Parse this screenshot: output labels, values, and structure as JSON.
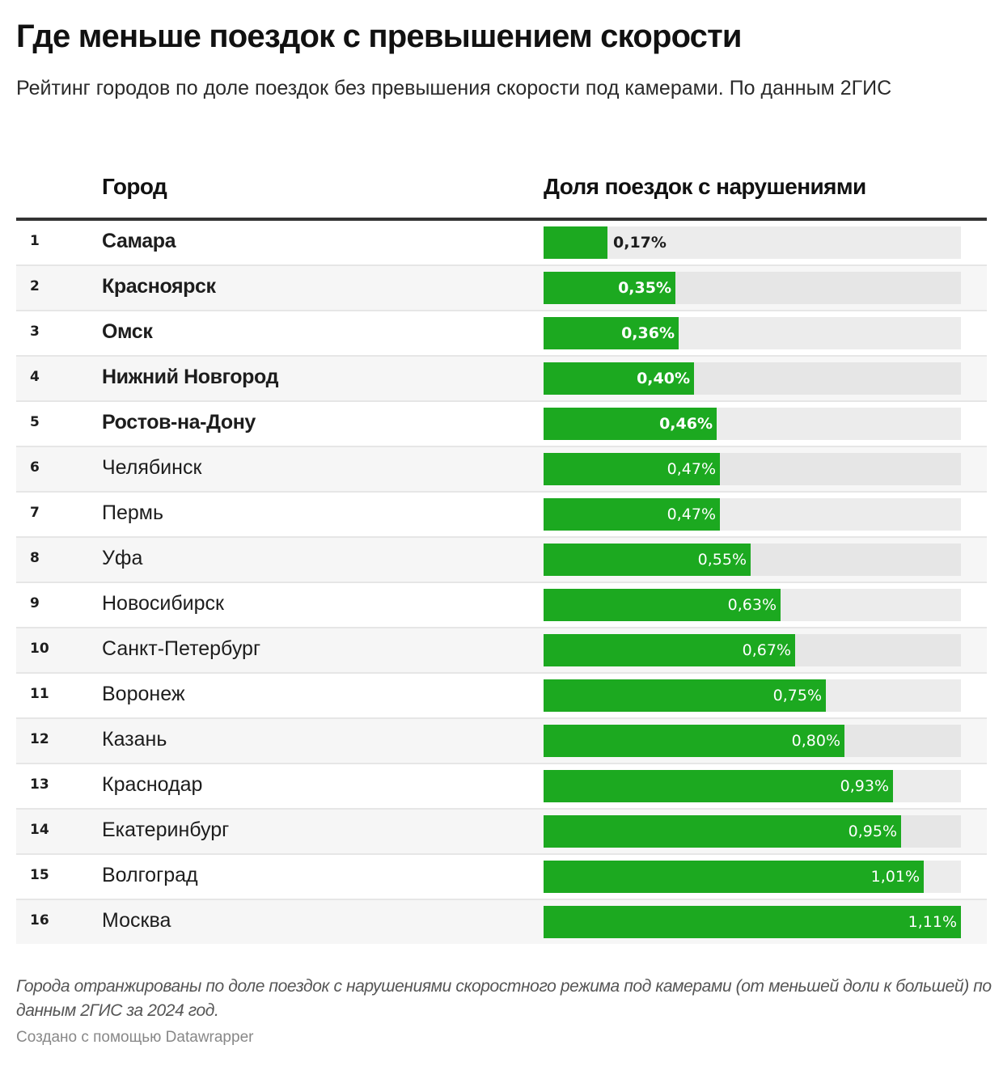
{
  "header": {
    "title": "Где меньше поездок с превышением скорости",
    "subtitle": "Рейтинг городов по доле поездок без превышения скорости под камерами. По данным 2ГИС"
  },
  "table": {
    "columns": {
      "rank": "",
      "city": "Город",
      "share": "Доля поездок с нарушениями"
    },
    "bar_color": "#1ca920",
    "track_color": "#ececec"
  },
  "chart_data": {
    "type": "bar",
    "orientation": "horizontal",
    "title": "Где меньше поездок с превышением скорости",
    "subtitle": "Рейтинг городов по доле поездок без превышения скорости под камерами. По данным 2ГИС",
    "xlabel": "Доля поездок с нарушениями",
    "ylabel": "Город",
    "xlim": [
      0,
      1.11
    ],
    "unit": "%",
    "rows": [
      {
        "rank": "1",
        "city": "Самара",
        "value": 0.17,
        "label": "0,17%",
        "bold": true
      },
      {
        "rank": "2",
        "city": "Красноярск",
        "value": 0.35,
        "label": "0,35%",
        "bold": true
      },
      {
        "rank": "3",
        "city": "Омск",
        "value": 0.36,
        "label": "0,36%",
        "bold": true
      },
      {
        "rank": "4",
        "city": "Нижний Новгород",
        "value": 0.4,
        "label": "0,40%",
        "bold": true
      },
      {
        "rank": "5",
        "city": "Ростов-на-Дону",
        "value": 0.46,
        "label": "0,46%",
        "bold": true
      },
      {
        "rank": "6",
        "city": "Челябинск",
        "value": 0.47,
        "label": "0,47%",
        "bold": false
      },
      {
        "rank": "7",
        "city": "Пермь",
        "value": 0.47,
        "label": "0,47%",
        "bold": false
      },
      {
        "rank": "8",
        "city": "Уфа",
        "value": 0.55,
        "label": "0,55%",
        "bold": false
      },
      {
        "rank": "9",
        "city": "Новосибирск",
        "value": 0.63,
        "label": "0,63%",
        "bold": false
      },
      {
        "rank": "10",
        "city": "Санкт-Петербург",
        "value": 0.67,
        "label": "0,67%",
        "bold": false
      },
      {
        "rank": "11",
        "city": "Воронеж",
        "value": 0.75,
        "label": "0,75%",
        "bold": false
      },
      {
        "rank": "12",
        "city": "Казань",
        "value": 0.8,
        "label": "0,80%",
        "bold": false
      },
      {
        "rank": "13",
        "city": "Краснодар",
        "value": 0.93,
        "label": "0,93%",
        "bold": false
      },
      {
        "rank": "14",
        "city": "Екатеринбург",
        "value": 0.95,
        "label": "0,95%",
        "bold": false
      },
      {
        "rank": "15",
        "city": "Волгоград",
        "value": 1.01,
        "label": "1,01%",
        "bold": false
      },
      {
        "rank": "16",
        "city": "Москва",
        "value": 1.11,
        "label": "1,11%",
        "bold": false
      }
    ]
  },
  "footer": {
    "notes": "Города отранжированы по доле поездок с нарушениями скоростного режима под камерами (от меньшей доли к большей) по данным 2ГИС за 2024 год.",
    "credit": "Создано с помощью Datawrapper"
  }
}
